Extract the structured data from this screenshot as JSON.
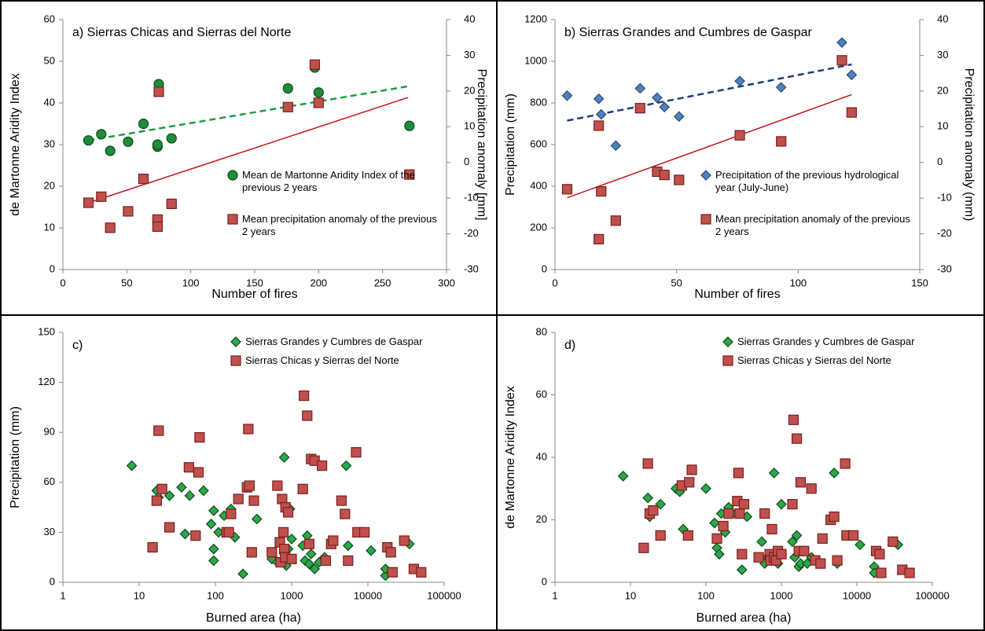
{
  "chart_data": [
    {
      "type": "scatter",
      "title": "a) Sierras Chicas and Sierras del Norte",
      "xlabel": "Number of fires",
      "ylabel": "de Martonne Aridity Index",
      "y2label": "Precipitation anomaly [mm]",
      "xlim": [
        0,
        300
      ],
      "xticks": [
        0,
        50,
        100,
        150,
        200,
        250,
        300
      ],
      "ylim": [
        0,
        60
      ],
      "yticks": [
        0,
        10,
        20,
        30,
        40,
        50,
        60
      ],
      "y2lim": [
        -30,
        40
      ],
      "y2ticks": [
        -30,
        -20,
        -10,
        0,
        10,
        20,
        30,
        40
      ],
      "legend": "lower right",
      "series": [
        {
          "name": "Mean de Martonne Aridity Index of the previous 2 years",
          "marker": "circle",
          "color": "#1e8c3a",
          "x": [
            20,
            30,
            37,
            51,
            63,
            74,
            74,
            75,
            85,
            176,
            197,
            200,
            271
          ],
          "values": [
            31,
            32.5,
            28.5,
            30.7,
            35,
            29.5,
            30,
            44.5,
            31.5,
            43.5,
            48.5,
            42.5,
            34.5
          ]
        },
        {
          "name": "Mean precipitation anomaly of the previous 2 years",
          "marker": "square",
          "color": "#c0504d",
          "axis": "y2",
          "x": [
            20,
            30,
            37,
            51,
            63,
            74,
            74,
            75,
            85,
            176,
            197,
            200,
            271
          ],
          "values": [
            -11.3,
            -9.6,
            -18.3,
            -13.7,
            -4.6,
            -16,
            -18,
            19.8,
            -11.6,
            15.5,
            27.4,
            16.7,
            -3.4
          ]
        }
      ],
      "trendlines": [
        {
          "color": "#1e9c46",
          "dash": true,
          "x": [
            20,
            270
          ],
          "values": [
            31,
            44
          ]
        },
        {
          "color": "#c0161c",
          "dash": false,
          "axis": "y2",
          "x": [
            20,
            270
          ],
          "values": [
            -11.3,
            18.2
          ]
        }
      ]
    },
    {
      "type": "scatter",
      "title": "b) Sierras Grandes and Cumbres de Gaspar",
      "xlabel": "Number of fires",
      "ylabel": "Precipitation (mm)",
      "y2label": "Precipitation anomaly (mm)",
      "xlim": [
        0,
        150
      ],
      "xticks": [
        0,
        50,
        100,
        150
      ],
      "ylim": [
        0,
        1200
      ],
      "yticks": [
        0,
        200,
        400,
        600,
        800,
        1000,
        1200
      ],
      "y2lim": [
        -30,
        40
      ],
      "y2ticks": [
        -30,
        -20,
        -10,
        0,
        10,
        20,
        30,
        40
      ],
      "legend": "lower right",
      "series": [
        {
          "name": "Precipitation of the previous hydrological year (July-June)",
          "marker": "diamond",
          "color": "#4f81bd",
          "x": [
            5,
            18,
            19,
            25,
            35,
            42,
            45,
            51,
            76,
            93,
            118,
            122
          ],
          "values": [
            835,
            820,
            745,
            595,
            870,
            825,
            780,
            735,
            905,
            875,
            1090,
            935
          ]
        },
        {
          "name": "Mean precipitation anomaly of the previous 2 years",
          "marker": "square",
          "color": "#c0504d",
          "axis": "y2",
          "x": [
            5,
            18,
            18,
            19,
            25,
            35,
            42,
            45,
            51,
            76,
            93,
            118,
            122
          ],
          "values": [
            -7.5,
            10.3,
            -21.5,
            -8.1,
            -16.3,
            15.2,
            -2.6,
            -3.5,
            -4.9,
            7.6,
            5.9,
            28.6,
            14
          ]
        }
      ],
      "trendlines": [
        {
          "color": "#1f3f7a",
          "dash": true,
          "x": [
            5,
            122
          ],
          "values": [
            715,
            985
          ]
        },
        {
          "color": "#c0161c",
          "dash": false,
          "axis": "y2",
          "x": [
            5,
            122
          ],
          "values": [
            -9.9,
            19
          ]
        }
      ]
    },
    {
      "type": "scatter",
      "title": "c)",
      "xlabel": "Burned area (ha)",
      "ylabel": "Precipitation (mm)",
      "xscale": "log",
      "xlim": [
        1,
        100000
      ],
      "xticks": [
        1,
        10,
        100,
        1000,
        10000,
        100000
      ],
      "ylim": [
        0,
        150
      ],
      "yticks": [
        0,
        30,
        60,
        90,
        120,
        150
      ],
      "legend": "top",
      "series": [
        {
          "name": "Sierras Grandes y Cumbres de Gaspar",
          "marker": "diamond",
          "color": "#2ca84a",
          "x": [
            8,
            17,
            18,
            25,
            36,
            46,
            40,
            70,
            88,
            95,
            95,
            95,
            110,
            130,
            160,
            180,
            230,
            260,
            350,
            550,
            650,
            800,
            850,
            900,
            950,
            1000,
            1400,
            1500,
            1600,
            1700,
            1800,
            2000,
            2300,
            2700,
            5200,
            5500,
            11000,
            17000,
            17000,
            35000
          ],
          "values": [
            70,
            55,
            51,
            52,
            57,
            52,
            29,
            55,
            35,
            43,
            20,
            13,
            30,
            40,
            44,
            27,
            5,
            57,
            38,
            14,
            12,
            75,
            10,
            20,
            44,
            26,
            22,
            13,
            28,
            11,
            17,
            8,
            12,
            15,
            70,
            22,
            19,
            4,
            8,
            23
          ]
        },
        {
          "name": "Sierras Chicas y Sierras del Norte",
          "marker": "square",
          "color": "#c0504d",
          "x": [
            15,
            17,
            18,
            20,
            25,
            45,
            55,
            60,
            62,
            140,
            150,
            160,
            200,
            260,
            270,
            280,
            300,
            320,
            550,
            650,
            700,
            720,
            750,
            780,
            800,
            820,
            830,
            900,
            1000,
            1400,
            1450,
            1600,
            1700,
            1800,
            2000,
            2500,
            2800,
            3300,
            3500,
            4500,
            5000,
            5500,
            7000,
            7300,
            9000,
            18000,
            20000,
            21000,
            30000,
            40000,
            50000
          ],
          "values": [
            21,
            49,
            91,
            56,
            33,
            69,
            28,
            66,
            87,
            30,
            30,
            41,
            50,
            57,
            92,
            58,
            18,
            49,
            18,
            58,
            24,
            12,
            50,
            30,
            20,
            15,
            45,
            42,
            14,
            56,
            112,
            100,
            23,
            74,
            73,
            70,
            13,
            23,
            25,
            49,
            41,
            13,
            78,
            30,
            30,
            21,
            18,
            6,
            25,
            8,
            6
          ]
        }
      ]
    },
    {
      "type": "scatter",
      "title": "d)",
      "xlabel": "Burned area (ha)",
      "ylabel": "de Martonne Aridity Index",
      "xscale": "log",
      "xlim": [
        1,
        100000
      ],
      "xticks": [
        1,
        10,
        100,
        1000,
        10000,
        100000
      ],
      "ylim": [
        0,
        80
      ],
      "yticks": [
        0,
        20,
        40,
        60,
        80
      ],
      "legend": "top",
      "series": [
        {
          "name": "Sierras Grandes y Cumbres de Gaspar",
          "marker": "diamond",
          "color": "#2ca84a",
          "x": [
            8,
            17,
            18,
            25,
            40,
            45,
            50,
            100,
            130,
            140,
            150,
            160,
            180,
            200,
            250,
            300,
            350,
            550,
            600,
            650,
            700,
            800,
            900,
            1000,
            1400,
            1500,
            1600,
            1700,
            1800,
            2200,
            2500,
            5000,
            5500,
            11000,
            17000,
            17000,
            35000
          ],
          "values": [
            34,
            27,
            21,
            25,
            30,
            29,
            17,
            30,
            19,
            11,
            9,
            22,
            16,
            24,
            22,
            4,
            21,
            13,
            6,
            8,
            9,
            35,
            6,
            25,
            13,
            8,
            15,
            5,
            6,
            6,
            8,
            35,
            6,
            12,
            5,
            3,
            12
          ]
        },
        {
          "name": "Sierras Chicas y Sierras del Norte",
          "marker": "square",
          "color": "#c0504d",
          "x": [
            15,
            17,
            18,
            20,
            25,
            48,
            58,
            60,
            65,
            140,
            170,
            200,
            260,
            270,
            280,
            300,
            320,
            500,
            600,
            700,
            720,
            750,
            800,
            850,
            900,
            1000,
            1400,
            1450,
            1600,
            1700,
            1800,
            2000,
            2500,
            2800,
            3300,
            3500,
            4500,
            5000,
            5500,
            7000,
            7300,
            9000,
            18000,
            20000,
            21000,
            30000,
            40000,
            50000
          ],
          "values": [
            11,
            38,
            22,
            23,
            15,
            31,
            15,
            32,
            36,
            14,
            18,
            22,
            26,
            35,
            22,
            9,
            25,
            8,
            22,
            9,
            7,
            17,
            8,
            7,
            10,
            9,
            25,
            52,
            46,
            10,
            32,
            10,
            30,
            7,
            6,
            14,
            20,
            21,
            7,
            38,
            15,
            15,
            10,
            9,
            3,
            13,
            4,
            3
          ]
        }
      ]
    }
  ]
}
